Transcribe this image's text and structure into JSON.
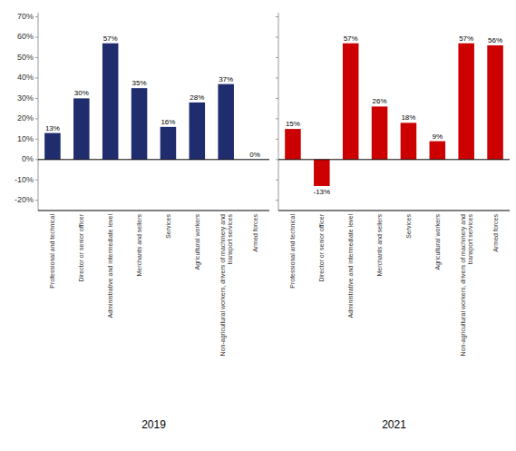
{
  "chart_data": [
    {
      "type": "bar",
      "title": "2019",
      "categories": [
        "Professional and technical",
        "Director or senior officer",
        "Administrative and intermediate level",
        "Merchants and sellers",
        "Services",
        "Agricultural workers",
        "Non-agricultural workers, drivers of machinery and\ntransport services",
        "Armed forces"
      ],
      "values": [
        13,
        30,
        57,
        35,
        16,
        28,
        37,
        0
      ],
      "value_labels": [
        "13%",
        "30%",
        "57%",
        "35%",
        "16%",
        "28%",
        "37%",
        "0%"
      ],
      "color": "#1F2D6E",
      "ylim": [
        -25,
        72
      ],
      "yticks": [
        {
          "value": -20,
          "label": "-20%"
        },
        {
          "value": -10,
          "label": "-10%"
        },
        {
          "value": 0,
          "label": "0%"
        },
        {
          "value": 10,
          "label": "10%"
        },
        {
          "value": 20,
          "label": "20%"
        },
        {
          "value": 30,
          "label": "30%"
        },
        {
          "value": 40,
          "label": "40%"
        },
        {
          "value": 50,
          "label": "50%"
        },
        {
          "value": 60,
          "label": "60%"
        },
        {
          "value": 70,
          "label": "70%"
        }
      ],
      "grid": false,
      "data_labels": true
    },
    {
      "type": "bar",
      "title": "2021",
      "categories": [
        "Professional and technical",
        "Director or senior officer",
        "Administrative and intermediate level",
        "Merchants and sellers",
        "Services",
        "Agricultural workers",
        "Non-agricultural workers, drivers of machinery and\ntransport services",
        "Armed forces"
      ],
      "values": [
        15,
        -13,
        57,
        26,
        18,
        9,
        57,
        56
      ],
      "value_labels": [
        "15%",
        "-13%",
        "57%",
        "26%",
        "18%",
        "9%",
        "57%",
        "56%"
      ],
      "color": "#CC0000",
      "ylim": [
        -25,
        72
      ],
      "yticks": [
        -20,
        -10,
        0,
        10,
        20,
        30,
        40,
        50,
        60,
        70
      ],
      "grid": false,
      "data_labels": true,
      "tick_labels": "x"
    }
  ]
}
